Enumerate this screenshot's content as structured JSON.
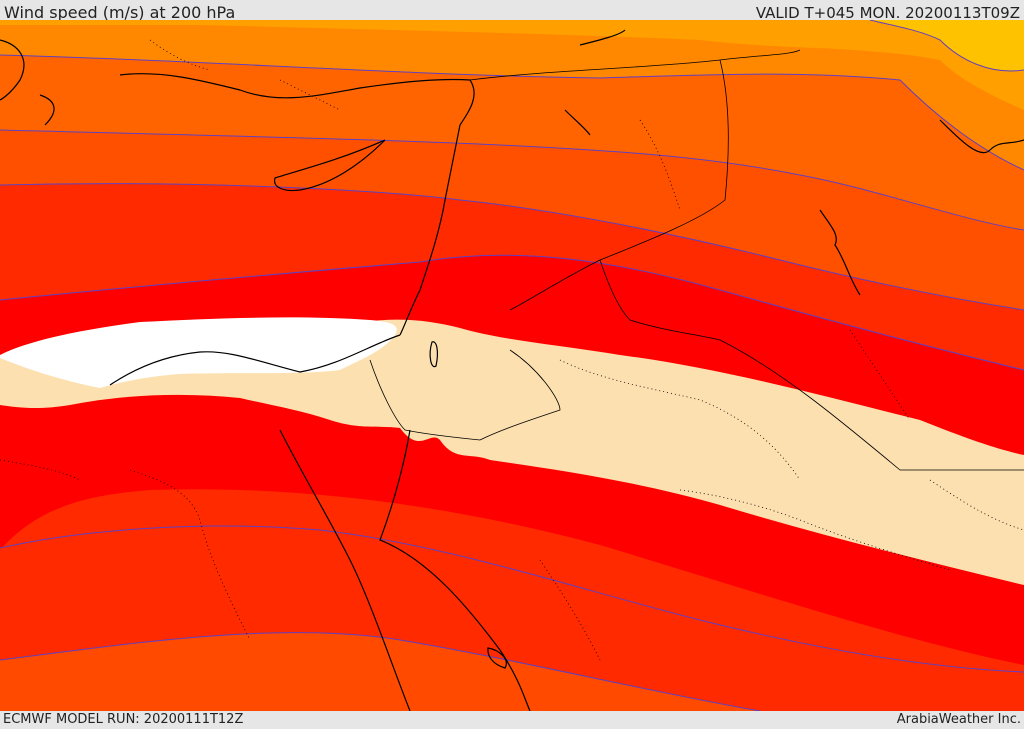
{
  "header": {
    "title": "Wind speed (m/s) at 200 hPa",
    "valid": "VALID T+045 MON. 20200113T09Z"
  },
  "footer": {
    "model_run": "ECMWF MODEL RUN: 20200111T12Z",
    "credit": "ArabiaWeather Inc."
  },
  "map": {
    "field": "wind speed 200 hPa",
    "region": "Eastern Mediterranean / Middle East",
    "band_colors": [
      "#ffc200",
      "#ffa000",
      "#ff7a00",
      "#ff6200",
      "#ff4a00",
      "#ff2200",
      "#ff0000",
      "#fde0b0",
      "#ffffff"
    ],
    "contour_color": "#6040c0",
    "coastline_color": "#000000",
    "border_style": "dotted"
  }
}
